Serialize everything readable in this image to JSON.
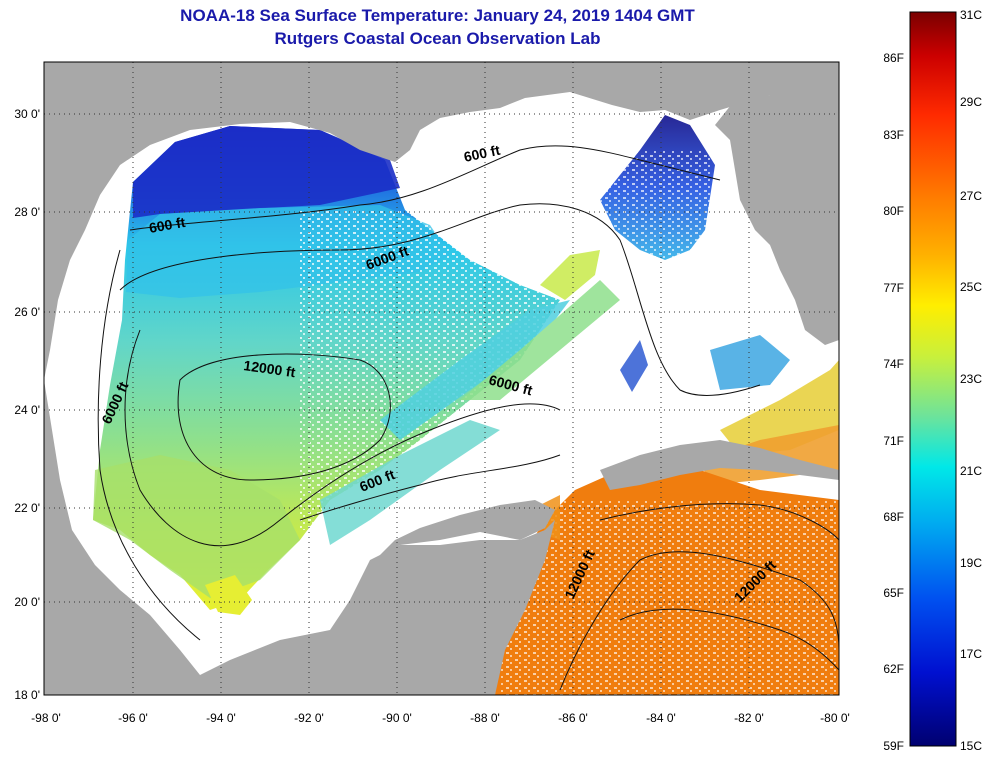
{
  "title_line1": "NOAA-18 Sea Surface Temperature:  January 24, 2019 1404 GMT",
  "title_line2": "Rutgers Coastal Ocean Observation Lab",
  "map": {
    "lat_labels": [
      "30 0'",
      "28 0'",
      "26 0'",
      "24 0'",
      "22 0'",
      "20 0'",
      "18 0'"
    ],
    "lon_labels": [
      "-98 0'",
      "-96 0'",
      "-94 0'",
      "-92 0'",
      "-90 0'",
      "-88 0'",
      "-86 0'",
      "-84 0'",
      "-82 0'",
      "-80 0'"
    ],
    "contour_labels": [
      "600 ft",
      "600 ft",
      "6000 ft",
      "12000 ft",
      "6000 ft",
      "6000 ft",
      "600 ft",
      "12000 ft",
      "12000 ft"
    ]
  },
  "colorbar": {
    "celsius_labels": [
      "31C",
      "29C",
      "27C",
      "25C",
      "23C",
      "21C",
      "19C",
      "17C",
      "15C"
    ],
    "fahrenheit_labels": [
      "86F",
      "83F",
      "80F",
      "77F",
      "74F",
      "71F",
      "68F",
      "65F",
      "62F",
      "59F"
    ]
  },
  "colors": {
    "land": "#a8a8a8",
    "cloud": "#ffffff",
    "title": "#1a1aaa"
  }
}
